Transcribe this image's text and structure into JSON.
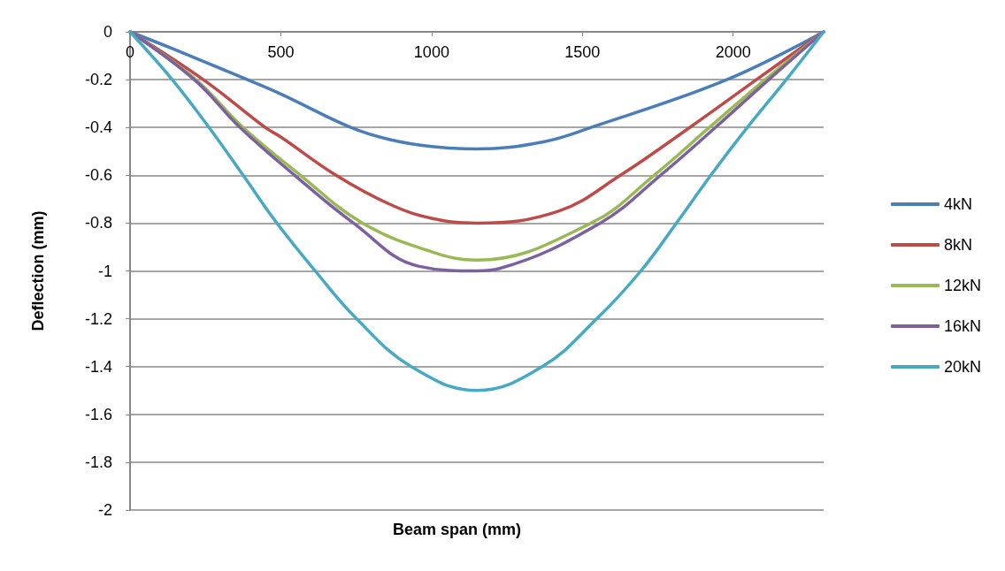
{
  "chart_data": {
    "type": "line",
    "xlabel": "Beam span (mm)",
    "ylabel": "Deflection (mm)",
    "xlim": [
      0,
      2300
    ],
    "xticks": [
      0,
      500,
      1000,
      1500,
      2000
    ],
    "ylim": [
      -2,
      0
    ],
    "yticks": [
      -2,
      -1.8,
      -1.6,
      -1.4,
      -1.2,
      -1,
      -0.8,
      -0.6,
      -0.4,
      -0.2,
      0
    ],
    "grid": "y",
    "legend": "right",
    "marker": "none",
    "line_style": "solid",
    "series": [
      {
        "name": "4kN",
        "color": "#4a7ebb",
        "x": [
          0,
          140,
          370,
          500,
          732,
          859,
          1000,
          1150,
          1371,
          1529,
          1979,
          2300
        ],
        "values": [
          0,
          -0.07,
          -0.19,
          -0.26,
          -0.4,
          -0.45,
          -0.48,
          -0.49,
          -0.46,
          -0.4,
          -0.2,
          0
        ]
      },
      {
        "name": "8kN",
        "color": "#be4b48",
        "x": [
          0,
          243,
          448,
          500,
          683,
          859,
          1000,
          1150,
          1421,
          1626,
          1856,
          2077,
          2300
        ],
        "values": [
          0,
          -0.2,
          -0.4,
          -0.44,
          -0.6,
          -0.72,
          -0.78,
          -0.8,
          -0.75,
          -0.6,
          -0.4,
          -0.2,
          0
        ]
      },
      {
        "name": "12kN",
        "color": "#98b954",
        "x": [
          0,
          218,
          375,
          565,
          771,
          1000,
          1150,
          1529,
          1738,
          1921,
          2106,
          2300
        ],
        "values": [
          0,
          -0.2,
          -0.4,
          -0.6,
          -0.8,
          -0.92,
          -0.955,
          -0.8,
          -0.6,
          -0.4,
          -0.2,
          0
        ]
      },
      {
        "name": "16kN",
        "color": "#7d60a0",
        "x": [
          0,
          213,
          365,
          546,
          741,
          956,
          1150,
          1225,
          1559,
          1759,
          1941,
          2118,
          2300
        ],
        "values": [
          0,
          -0.2,
          -0.4,
          -0.6,
          -0.8,
          -0.98,
          -1,
          -0.99,
          -0.8,
          -0.6,
          -0.4,
          -0.2,
          0
        ]
      },
      {
        "name": "20kN",
        "color": "#46aac5",
        "x": [
          0,
          140,
          262,
          375,
          487,
          614,
          751,
          932,
          1150,
          1367,
          1548,
          1694,
          1812,
          1926,
          2047,
          2176,
          2300
        ],
        "values": [
          0,
          -0.2,
          -0.4,
          -0.6,
          -0.8,
          -1,
          -1.2,
          -1.4,
          -1.5,
          -1.4,
          -1.2,
          -1,
          -0.8,
          -0.6,
          -0.4,
          -0.2,
          0
        ]
      }
    ]
  }
}
